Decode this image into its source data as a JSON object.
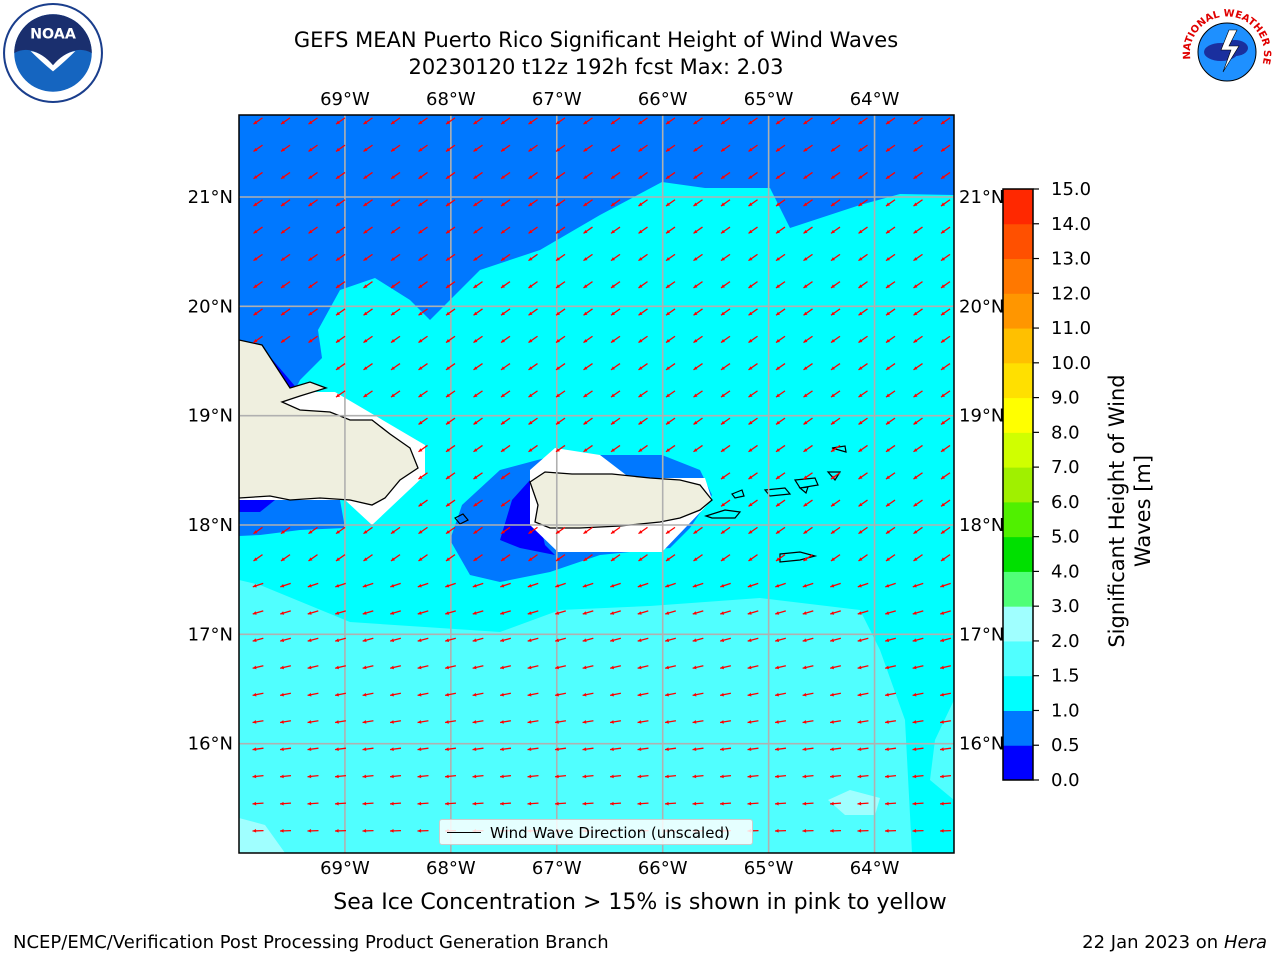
{
  "header": {
    "title_line1": "GEFS MEAN Puerto Rico Significant Height of Wind Waves",
    "title_line2": "20230120 t12z 192h fcst   Max: 2.03"
  },
  "logos": {
    "left": {
      "icon": "noaa-logo-icon",
      "text": "NOAA"
    },
    "right": {
      "icon": "nws-logo-icon",
      "text": "NATIONAL WEATHER SERVICE"
    }
  },
  "map": {
    "lon_ticks": [
      "69°W",
      "68°W",
      "67°W",
      "66°W",
      "65°W",
      "64°W"
    ],
    "lat_ticks": [
      "21°N",
      "20°N",
      "19°N",
      "18°N",
      "17°N",
      "16°N"
    ],
    "lon_range": [
      -70.0,
      -63.25
    ],
    "lat_range": [
      15.0,
      21.75
    ],
    "grid": true,
    "arrow_color": "#ff0000",
    "land_color": "#efefdf"
  },
  "colorbar": {
    "levels": [
      "0.0",
      "0.5",
      "1.0",
      "1.5",
      "2.0",
      "3.0",
      "4.0",
      "5.0",
      "6.0",
      "7.0",
      "8.0",
      "9.0",
      "10.0",
      "11.0",
      "12.0",
      "13.0",
      "14.0",
      "15.0"
    ],
    "colors": [
      "#0000ff",
      "#0078ff",
      "#00ffff",
      "#50ffff",
      "#a0ffff",
      "#50ff78",
      "#00e000",
      "#50f000",
      "#a0f000",
      "#d0ff00",
      "#ffff00",
      "#ffe000",
      "#ffc000",
      "#ff9600",
      "#ff7800",
      "#ff5000",
      "#ff2800"
    ],
    "label_line1": "Significant Height of Wind",
    "label_line2": "Waves [m]"
  },
  "legend": {
    "label": "Wind Wave Direction (unscaled)",
    "placement": "bottom-center"
  },
  "sea_ice_note": "Sea Ice Concentration > 15% is shown in pink to yellow",
  "footer": {
    "left": "NCEP/EMC/Verification Post Processing Product Generation Branch",
    "right_date": "22 Jan 2023 on",
    "right_host": "Hera"
  }
}
